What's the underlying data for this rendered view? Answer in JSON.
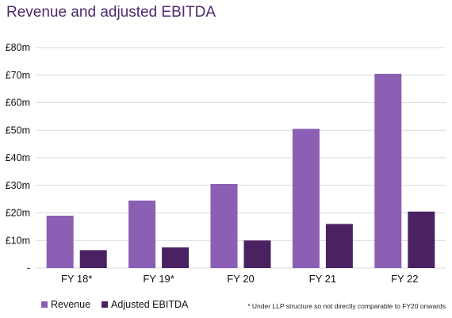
{
  "chart_data": {
    "type": "bar",
    "title": "Revenue and adjusted EBITDA",
    "categories": [
      "FY 18*",
      "FY 19*",
      "FY 20",
      "FY 21",
      "FY 22"
    ],
    "series": [
      {
        "name": "Revenue",
        "values": [
          19,
          24.5,
          30.5,
          50.5,
          70.5
        ],
        "color": "#8a5fb4"
      },
      {
        "name": "Adjusted EBITDA",
        "values": [
          6.5,
          7.5,
          10,
          16,
          20.5
        ],
        "color": "#4a2262"
      }
    ],
    "ylim": [
      0,
      80
    ],
    "yticks": [
      "-",
      "£10m",
      "£20m",
      "£30m",
      "£40m",
      "£50m",
      "£60m",
      "£70m",
      "£80m"
    ],
    "xlabel": "",
    "ylabel": "",
    "grid": true,
    "legend_position": "bottom-left",
    "footnote": "* Under LLP structure so not directly comparable to FY20 onwards"
  }
}
